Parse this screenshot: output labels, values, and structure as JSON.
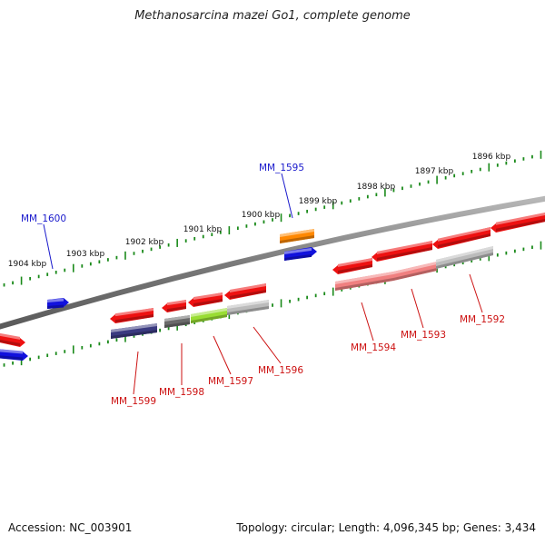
{
  "title": "Methanosarcina mazei Go1, complete genome",
  "footer": {
    "accession": "Accession: NC_003901",
    "stats": "Topology: circular; Length: 4,096,345 bp; Genes: 3,434"
  },
  "colors": {
    "backbone": "#7a7a7a",
    "tick": "#1a8a1a",
    "label_forward": "#1a1acc",
    "label_reverse": "#cc1111",
    "red": "#ee1111",
    "blue": "#1111dd",
    "orange": "#ff8800",
    "navy": "#3a3a80",
    "gray": "#6a6a6a",
    "lightgray": "#bbbbbb",
    "lime": "#99dd33",
    "pink": "#f08080"
  },
  "scale": {
    "labels": [
      "1896 kbp",
      "1897 kbp",
      "1898 kbp",
      "1899 kbp",
      "1900 kbp",
      "1901 kbp",
      "1902 kbp",
      "1903 kbp",
      "1904 kbp"
    ]
  },
  "gene_labels": [
    {
      "id": "MM_1600",
      "strand": "forward"
    },
    {
      "id": "MM_1595",
      "strand": "forward"
    },
    {
      "id": "MM_1599",
      "strand": "reverse"
    },
    {
      "id": "MM_1598",
      "strand": "reverse"
    },
    {
      "id": "MM_1597",
      "strand": "reverse"
    },
    {
      "id": "MM_1596",
      "strand": "reverse"
    },
    {
      "id": "MM_1594",
      "strand": "reverse"
    },
    {
      "id": "MM_1593",
      "strand": "reverse"
    },
    {
      "id": "MM_1592",
      "strand": "reverse"
    }
  ],
  "features": [
    {
      "name": "gene-far-left-red",
      "color": "red"
    },
    {
      "name": "gene-far-left-blue",
      "color": "blue"
    },
    {
      "name": "gene-mm1600",
      "color": "blue"
    },
    {
      "name": "gene-mm1599",
      "color": "red"
    },
    {
      "name": "cds-mm1599",
      "color": "navy"
    },
    {
      "name": "gene-mm1598",
      "color": "red"
    },
    {
      "name": "cds-mm1598",
      "color": "gray"
    },
    {
      "name": "gene-mm1597",
      "color": "red"
    },
    {
      "name": "cds-mm1597",
      "color": "lime"
    },
    {
      "name": "gene-mm1596",
      "color": "red"
    },
    {
      "name": "cds-mm1596",
      "color": "lightgray"
    },
    {
      "name": "cds-mm1595",
      "color": "orange"
    },
    {
      "name": "gene-mm1595",
      "color": "blue"
    },
    {
      "name": "gene-mm1594",
      "color": "red"
    },
    {
      "name": "cds-mm1594",
      "color": "pink"
    },
    {
      "name": "gene-mm1593",
      "color": "red"
    },
    {
      "name": "cds-mm1593",
      "color": "pink"
    },
    {
      "name": "gene-mm1592",
      "color": "red"
    },
    {
      "name": "cds-mm1592",
      "color": "lightgray"
    },
    {
      "name": "gene-far-right-red",
      "color": "red"
    }
  ]
}
